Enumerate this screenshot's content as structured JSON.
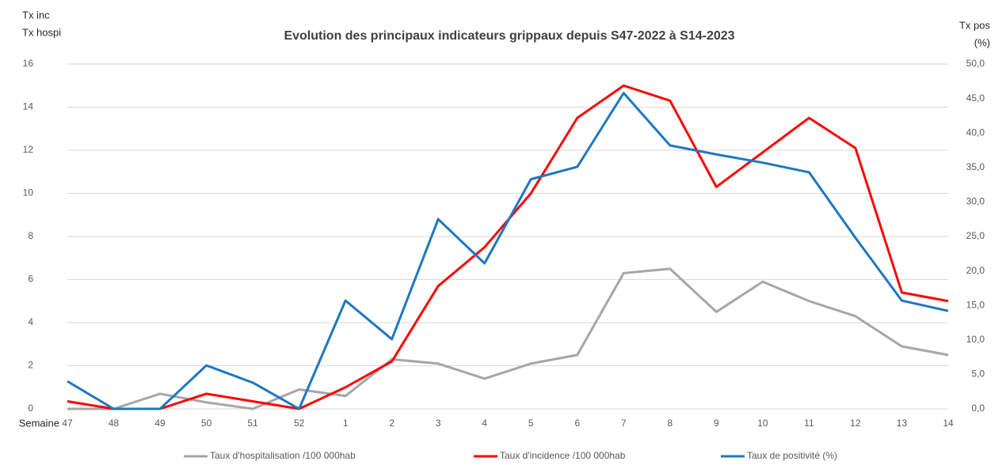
{
  "chart_data": {
    "type": "line",
    "title": "Evolution des principaux indicateurs grippaux depuis S47-2022 à S14-2023",
    "y_label": [
      "Tx inc",
      "Tx hospi"
    ],
    "y2_label": [
      "Tx pos",
      "(%)"
    ],
    "x_label": "Semaine",
    "categories": [
      "47",
      "48",
      "49",
      "50",
      "51",
      "52",
      "1",
      "2",
      "3",
      "4",
      "5",
      "6",
      "7",
      "8",
      "9",
      "10",
      "11",
      "12",
      "13",
      "14"
    ],
    "series": [
      {
        "name": "Taux d'hospitalisation /100 000hab",
        "color": "#a6a6a6",
        "values": [
          0,
          0,
          0.7,
          0.3,
          0,
          0.9,
          0.6,
          2.3,
          2.1,
          1.4,
          2.1,
          2.5,
          6.3,
          6.5,
          4.5,
          5.9,
          5.0,
          4.3,
          2.9,
          2.5
        ]
      },
      {
        "name": "Taux d'incidence /100 000hab",
        "color": "#ff0000",
        "values": [
          0.35,
          0,
          0,
          0.7,
          0.35,
          0,
          1.0,
          2.2,
          5.7,
          7.5,
          10.0,
          13.5,
          15.0,
          14.3,
          10.3,
          11.9,
          13.5,
          12.1,
          5.4,
          5.0
        ]
      },
      {
        "name": "Taux de positivité (%)",
        "color": "#1f77c0",
        "axis": "y2",
        "values": [
          4.0,
          0,
          0,
          6.3,
          3.8,
          0,
          15.7,
          10.1,
          27.5,
          21.1,
          33.3,
          35.1,
          45.8,
          38.2,
          36.9,
          35.7,
          34.3,
          24.8,
          15.7,
          14.2
        ]
      }
    ],
    "ylim": [
      0,
      16
    ],
    "yticks": [
      0,
      2,
      4,
      6,
      8,
      10,
      12,
      14,
      16
    ],
    "y2lim": [
      0,
      50
    ],
    "y2ticks": [
      {
        "value": 0,
        "label": "0,0"
      },
      {
        "value": 5,
        "label": "5,0"
      },
      {
        "value": 10,
        "label": "10,0"
      },
      {
        "value": 15,
        "label": "15,0"
      },
      {
        "value": 20,
        "label": "20,0"
      },
      {
        "value": 25,
        "label": "25,0"
      },
      {
        "value": 30,
        "label": "30,0"
      },
      {
        "value": 35,
        "label": "35,0"
      },
      {
        "value": 40,
        "label": "40,0"
      },
      {
        "value": 45,
        "label": "45,0"
      },
      {
        "value": 50,
        "label": "50,0"
      }
    ],
    "grid": true,
    "legend": "bottom"
  }
}
